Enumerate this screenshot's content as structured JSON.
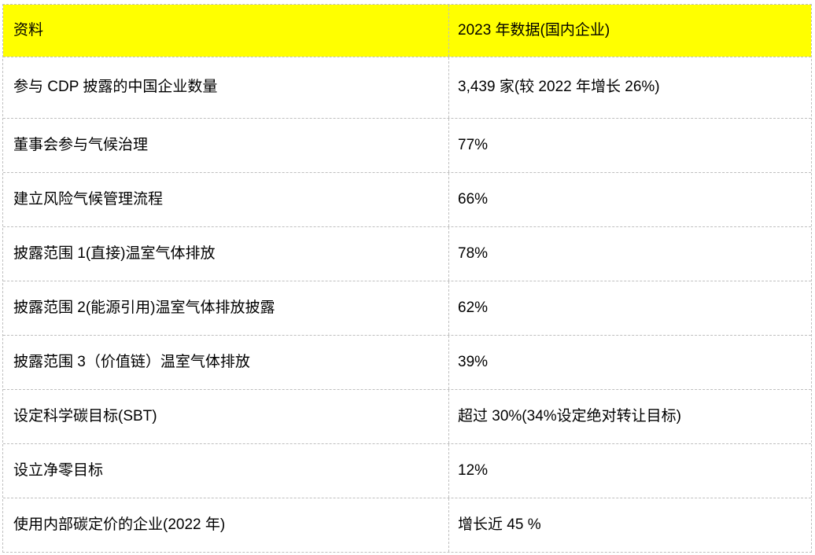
{
  "table": {
    "title_semantic": "CDP 2023 domestic enterprise climate disclosure data table",
    "colors": {
      "header_bg": "#ffff00",
      "border": "#bfbfbf",
      "text": "#000000"
    },
    "header": {
      "col1": "资料",
      "col2": "2023 年数据(国内企业)"
    },
    "rows": [
      {
        "label": "参与 CDP 披露的中国企业数量",
        "value": "3,439 家(较 2022 年增长 26%)"
      },
      {
        "label": "董事会参与气候治理",
        "value": "77%"
      },
      {
        "label": "建立风险气候管理流程",
        "value": "66%"
      },
      {
        "label": "披露范围 1(直接)温室气体排放",
        "value": "78%"
      },
      {
        "label": "披露范围 2(能源引用)温室气体排放披露",
        "value": "62%"
      },
      {
        "label": "披露范围 3（价值链）温室气体排放",
        "value": "39%"
      },
      {
        "label": "设定科学碳目标(SBT)",
        "value": "超过 30%(34%设定绝对转让目标)"
      },
      {
        "label": "设立净零目标",
        "value": "12%"
      },
      {
        "label": "使用内部碳定价的企业(2022 年)",
        "value": "增长近 45 %"
      }
    ]
  }
}
